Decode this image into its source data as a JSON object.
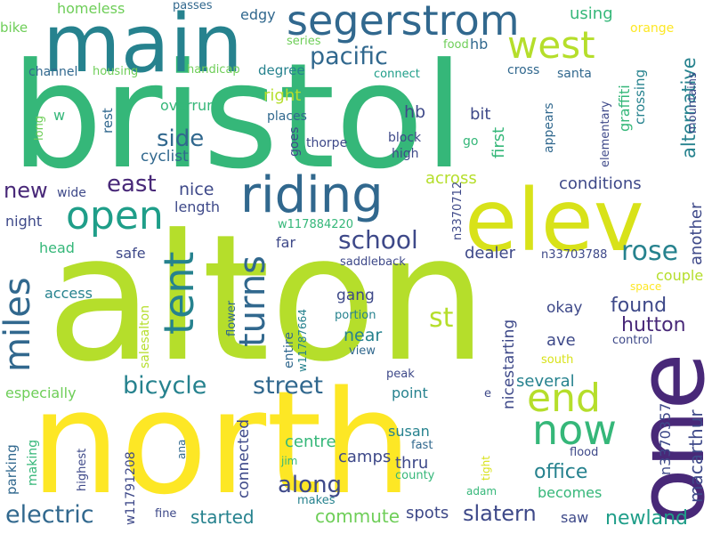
{
  "palette": {
    "background": "#ffffff",
    "c1": "#440154",
    "c2": "#482878",
    "c3": "#3e4989",
    "c4": "#31688e",
    "c5": "#26828e",
    "c6": "#1f9e89",
    "c7": "#35b779",
    "c8": "#6ece58",
    "c9": "#b5de2b",
    "c10": "#fde725"
  },
  "words": [
    {
      "text": "bristol",
      "color": "#35b779"
    },
    {
      "text": "alton",
      "color": "#b5de2b"
    },
    {
      "text": "north",
      "color": "#fde725"
    },
    {
      "text": "main",
      "color": "#26828e"
    },
    {
      "text": "elev",
      "color": "#d8e219"
    },
    {
      "text": "one",
      "color": "#482878"
    },
    {
      "text": "riding",
      "color": "#31688e"
    },
    {
      "text": "segerstrom",
      "color": "#31688e"
    },
    {
      "text": "west",
      "color": "#b5de2b"
    },
    {
      "text": "open",
      "color": "#1f9e89"
    },
    {
      "text": "tent",
      "color": "#26828e"
    },
    {
      "text": "turns",
      "color": "#31688e"
    },
    {
      "text": "miles",
      "color": "#31688e"
    },
    {
      "text": "end",
      "color": "#b5de2b"
    },
    {
      "text": "now",
      "color": "#35b779"
    },
    {
      "text": "bicycle",
      "color": "#26828e"
    },
    {
      "text": "street",
      "color": "#31688e"
    },
    {
      "text": "electric",
      "color": "#31688e"
    },
    {
      "text": "school",
      "color": "#3e4989"
    },
    {
      "text": "pacific",
      "color": "#31688e"
    },
    {
      "text": "rose",
      "color": "#26828e"
    },
    {
      "text": "st",
      "color": "#b5de2b"
    },
    {
      "text": "side",
      "color": "#31688e"
    },
    {
      "text": "east",
      "color": "#482878"
    },
    {
      "text": "new",
      "color": "#482878"
    },
    {
      "text": "along",
      "color": "#3e4989"
    },
    {
      "text": "slatern",
      "color": "#3e4989"
    },
    {
      "text": "hutton",
      "color": "#482878"
    },
    {
      "text": "found",
      "color": "#3e4989"
    },
    {
      "text": "newland",
      "color": "#1f9e89"
    },
    {
      "text": "commute",
      "color": "#6ece58"
    },
    {
      "text": "office",
      "color": "#26828e"
    },
    {
      "text": "alternative",
      "color": "#26828e"
    },
    {
      "text": "macarthur",
      "color": "#3e4989"
    },
    {
      "text": "conditions",
      "color": "#3e4989"
    },
    {
      "text": "started",
      "color": "#26828e"
    },
    {
      "text": "nice",
      "color": "#3e4989"
    },
    {
      "text": "hb",
      "color": "#3e4989"
    },
    {
      "text": "bit",
      "color": "#3e4989"
    },
    {
      "text": "across",
      "color": "#b5de2b"
    },
    {
      "text": "first",
      "color": "#35b779"
    },
    {
      "text": "another",
      "color": "#3e4989"
    },
    {
      "text": "dealer",
      "color": "#3e4989"
    },
    {
      "text": "gang",
      "color": "#3e4989"
    },
    {
      "text": "near",
      "color": "#26828e"
    },
    {
      "text": "okay",
      "color": "#3e4989"
    },
    {
      "text": "ave",
      "color": "#3e4989"
    },
    {
      "text": "several",
      "color": "#26828e"
    },
    {
      "text": "point",
      "color": "#26828e"
    },
    {
      "text": "susan",
      "color": "#26828e"
    },
    {
      "text": "centre",
      "color": "#35b779"
    },
    {
      "text": "camps",
      "color": "#3e4989"
    },
    {
      "text": "thru",
      "color": "#3e4989"
    },
    {
      "text": "spots",
      "color": "#3e4989"
    },
    {
      "text": "becomes",
      "color": "#35b779"
    },
    {
      "text": "saw",
      "color": "#3e4989"
    },
    {
      "text": "connected",
      "color": "#3e4989"
    },
    {
      "text": "nicestarting",
      "color": "#3e4989"
    },
    {
      "text": "n3370357",
      "color": "#3e4989"
    },
    {
      "text": "couple",
      "color": "#b5de2b"
    },
    {
      "text": "graffiti",
      "color": "#35b779"
    },
    {
      "text": "crossing",
      "color": "#26828e"
    },
    {
      "text": "elementary",
      "color": "#3e4989"
    },
    {
      "text": "appears",
      "color": "#31688e"
    },
    {
      "text": "santa",
      "color": "#31688e"
    },
    {
      "text": "cross",
      "color": "#31688e"
    },
    {
      "text": "mountains",
      "color": "#3e4989"
    },
    {
      "text": "orange",
      "color": "#fde725"
    },
    {
      "text": "using",
      "color": "#35b779"
    },
    {
      "text": "edgy",
      "color": "#31688e"
    },
    {
      "text": "hb",
      "color": "#31688e"
    },
    {
      "text": "series",
      "color": "#6ece58"
    },
    {
      "text": "food",
      "color": "#6ece58"
    },
    {
      "text": "connect",
      "color": "#1f9e89"
    },
    {
      "text": "homeless",
      "color": "#6ece58"
    },
    {
      "text": "passes",
      "color": "#31688e"
    },
    {
      "text": "bike",
      "color": "#6ece58"
    },
    {
      "text": "channel",
      "color": "#31688e"
    },
    {
      "text": "housing",
      "color": "#6ece58"
    },
    {
      "text": "handicap",
      "color": "#6ece58"
    },
    {
      "text": "degree",
      "color": "#26828e"
    },
    {
      "text": "right",
      "color": "#b5de2b"
    },
    {
      "text": "places",
      "color": "#31688e"
    },
    {
      "text": "overrun",
      "color": "#35b779"
    },
    {
      "text": "thorpe",
      "color": "#3e4989"
    },
    {
      "text": "block",
      "color": "#3e4989"
    },
    {
      "text": "high",
      "color": "#3e4989"
    },
    {
      "text": "go",
      "color": "#35b779"
    },
    {
      "text": "w",
      "color": "#35b779"
    },
    {
      "text": "long",
      "color": "#6ece58"
    },
    {
      "text": "rest",
      "color": "#31688e"
    },
    {
      "text": "goes",
      "color": "#3e4989"
    },
    {
      "text": "cyclist",
      "color": "#31688e"
    },
    {
      "text": "wide",
      "color": "#3e4989"
    },
    {
      "text": "night",
      "color": "#3e4989"
    },
    {
      "text": "length",
      "color": "#3e4989"
    },
    {
      "text": "w117884220",
      "color": "#35b779"
    },
    {
      "text": "n3370712",
      "color": "#3e4989"
    },
    {
      "text": "head",
      "color": "#35b779"
    },
    {
      "text": "far",
      "color": "#3e4989"
    },
    {
      "text": "safe",
      "color": "#3e4989"
    },
    {
      "text": "saddleback",
      "color": "#3e4989"
    },
    {
      "text": "n33703788",
      "color": "#3e4989"
    },
    {
      "text": "space",
      "color": "#fde725"
    },
    {
      "text": "access",
      "color": "#26828e"
    },
    {
      "text": "salesalton",
      "color": "#b5de2b"
    },
    {
      "text": "w11787664",
      "color": "#26828e"
    },
    {
      "text": "flower",
      "color": "#31688e"
    },
    {
      "text": "entire",
      "color": "#31688e"
    },
    {
      "text": "portion",
      "color": "#26828e"
    },
    {
      "text": "view",
      "color": "#31688e"
    },
    {
      "text": "control",
      "color": "#3e4989"
    },
    {
      "text": "south",
      "color": "#d8e219"
    },
    {
      "text": "especially",
      "color": "#6ece58"
    },
    {
      "text": "peak",
      "color": "#3e4989"
    },
    {
      "text": "e",
      "color": "#3e4989"
    },
    {
      "text": "parking",
      "color": "#31688e"
    },
    {
      "text": "making",
      "color": "#35b779"
    },
    {
      "text": "w11791208",
      "color": "#3e4989"
    },
    {
      "text": "highest",
      "color": "#3e4989"
    },
    {
      "text": "ana",
      "color": "#31688e"
    },
    {
      "text": "jim",
      "color": "#35b779"
    },
    {
      "text": "makes",
      "color": "#26828e"
    },
    {
      "text": "fast",
      "color": "#31688e"
    },
    {
      "text": "county",
      "color": "#35b779"
    },
    {
      "text": "flood",
      "color": "#3e4989"
    },
    {
      "text": "tight",
      "color": "#d8e219"
    },
    {
      "text": "adam",
      "color": "#35b779"
    },
    {
      "text": "fine",
      "color": "#3e4989"
    }
  ]
}
